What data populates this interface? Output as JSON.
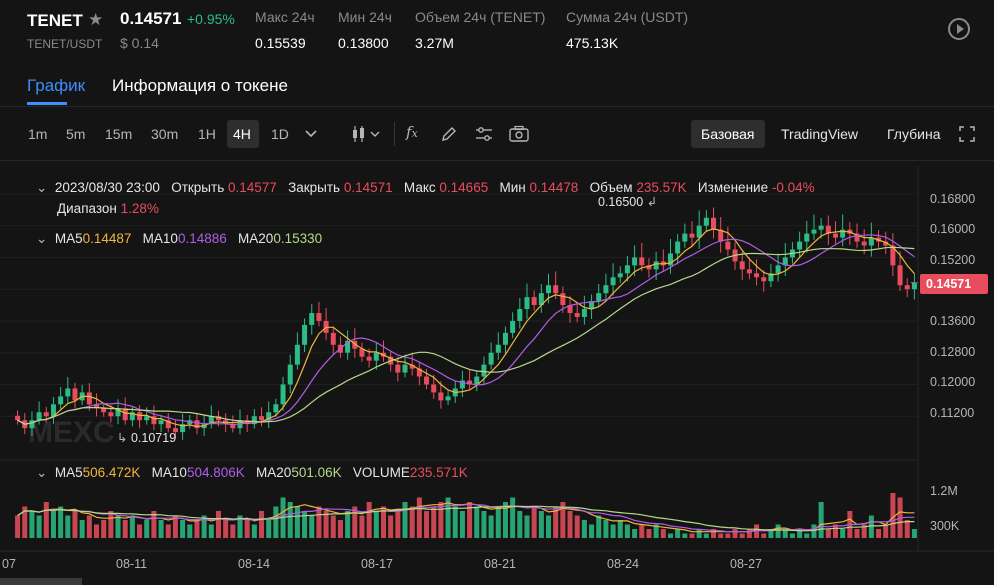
{
  "header": {
    "symbol": "TENET",
    "price": "0.14571",
    "change": "+0.95%",
    "pair": "TENET/USDT",
    "usd_price": "$ 0.14",
    "stats": [
      {
        "label": "Макс 24ч",
        "value": "0.15539"
      },
      {
        "label": "Мин 24ч",
        "value": "0.13800"
      },
      {
        "label": "Объем 24ч (TENET)",
        "value": "3.27M"
      },
      {
        "label": "Сумма 24ч (USDT)",
        "value": "475.13K"
      }
    ]
  },
  "tabs": [
    "График",
    "Информация о токене"
  ],
  "toolbar": {
    "intervals": [
      "1m",
      "5m",
      "15m",
      "30m",
      "1H",
      "4H",
      "1D"
    ],
    "selected_interval": "4H",
    "views": [
      "Базовая",
      "TradingView",
      "Глубина"
    ],
    "selected_view": "Базовая"
  },
  "ohlc": {
    "date": "2023/08/30 23:00",
    "open_label": "Открыть",
    "open": "0.14577",
    "close_label": "Закрыть",
    "close": "0.14571",
    "high_label": "Макс",
    "high": "0.14665",
    "low_label": "Мин",
    "low": "0.14478",
    "volume_label": "Объем",
    "volume": "235.57K",
    "change_label": "Изменение",
    "change": "-0.04%",
    "range_label": "Диапазон",
    "range": "1.28%"
  },
  "ma": {
    "ma5_label": "MA5",
    "ma5": "0.14487",
    "ma10_label": "MA10",
    "ma10": "0.14886",
    "ma20_label": "MA20",
    "ma20": "0.15330"
  },
  "vol_ma": {
    "ma5_label": "MA5",
    "ma5": "506.472K",
    "ma10_label": "MA10",
    "ma10": "504.806K",
    "ma20_label": "MA20",
    "ma20": "501.06K",
    "volume_label": "VOLUME",
    "volume": "235.571K"
  },
  "markers": {
    "high": "0.16500",
    "low": "0.10719"
  },
  "last_price_tag": "0.14571",
  "watermark": "MEXC",
  "colors": {
    "up": "#2bbd85",
    "down": "#e84d5d",
    "ma5": "#f0b53d",
    "ma10": "#b05de8",
    "ma20": "#b6d98a",
    "accent": "#3d8eff"
  },
  "chart_data": {
    "type": "candlestick",
    "price_axis": [
      "0.16800",
      "0.16000",
      "0.15200",
      "0.14400",
      "0.13600",
      "0.12800",
      "0.12000",
      "0.11200"
    ],
    "volume_axis": [
      "1.2M",
      "300K"
    ],
    "x_labels": [
      "07",
      "08-11",
      "08-14",
      "08-17",
      "08-21",
      "08-24",
      "08-27"
    ],
    "closes": [
      0.111,
      0.109,
      0.111,
      0.113,
      0.112,
      0.115,
      0.117,
      0.119,
      0.116,
      0.118,
      0.115,
      0.114,
      0.113,
      0.112,
      0.114,
      0.111,
      0.113,
      0.111,
      0.112,
      0.11,
      0.111,
      0.109,
      0.108,
      0.11,
      0.111,
      0.109,
      0.11,
      0.112,
      0.111,
      0.11,
      0.109,
      0.111,
      0.11,
      0.112,
      0.111,
      0.113,
      0.115,
      0.12,
      0.125,
      0.13,
      0.135,
      0.138,
      0.136,
      0.133,
      0.13,
      0.128,
      0.131,
      0.129,
      0.127,
      0.126,
      0.128,
      0.127,
      0.125,
      0.123,
      0.125,
      0.124,
      0.122,
      0.12,
      0.118,
      0.116,
      0.117,
      0.119,
      0.121,
      0.12,
      0.122,
      0.125,
      0.128,
      0.13,
      0.133,
      0.136,
      0.139,
      0.142,
      0.14,
      0.143,
      0.145,
      0.143,
      0.14,
      0.138,
      0.137,
      0.139,
      0.141,
      0.143,
      0.145,
      0.147,
      0.148,
      0.15,
      0.152,
      0.15,
      0.149,
      0.151,
      0.15,
      0.153,
      0.156,
      0.158,
      0.157,
      0.16,
      0.162,
      0.159,
      0.156,
      0.154,
      0.151,
      0.149,
      0.148,
      0.147,
      0.146,
      0.148,
      0.15,
      0.152,
      0.154,
      0.156,
      0.158,
      0.159,
      0.16,
      0.158,
      0.157,
      0.159,
      0.158,
      0.156,
      0.155,
      0.157,
      0.156,
      0.155,
      0.15,
      0.145,
      0.144,
      0.1457
    ],
    "volumes": [
      0.5,
      0.7,
      0.6,
      0.5,
      0.8,
      0.6,
      0.7,
      0.5,
      0.6,
      0.4,
      0.5,
      0.3,
      0.4,
      0.6,
      0.5,
      0.4,
      0.5,
      0.3,
      0.4,
      0.6,
      0.4,
      0.3,
      0.5,
      0.4,
      0.3,
      0.4,
      0.5,
      0.3,
      0.6,
      0.4,
      0.3,
      0.5,
      0.4,
      0.3,
      0.6,
      0.4,
      0.7,
      0.9,
      0.8,
      0.7,
      0.6,
      0.5,
      0.7,
      0.6,
      0.5,
      0.4,
      0.6,
      0.7,
      0.5,
      0.8,
      0.6,
      0.7,
      0.5,
      0.6,
      0.8,
      0.7,
      0.9,
      0.6,
      0.7,
      0.8,
      0.9,
      0.7,
      0.6,
      0.8,
      0.7,
      0.6,
      0.5,
      0.7,
      0.8,
      0.9,
      0.6,
      0.5,
      0.7,
      0.6,
      0.5,
      0.7,
      0.8,
      0.6,
      0.5,
      0.4,
      0.3,
      0.5,
      0.4,
      0.3,
      0.4,
      0.3,
      0.2,
      0.3,
      0.2,
      0.3,
      0.2,
      0.1,
      0.2,
      0.1,
      0.1,
      0.2,
      0.1,
      0.2,
      0.1,
      0.1,
      0.2,
      0.1,
      0.2,
      0.3,
      0.1,
      0.2,
      0.3,
      0.2,
      0.1,
      0.2,
      0.1,
      0.3,
      0.8,
      0.2,
      0.3,
      0.2,
      0.6,
      0.2,
      0.3,
      0.5,
      0.2,
      0.3,
      1.0,
      0.9,
      0.4,
      0.2
    ]
  }
}
